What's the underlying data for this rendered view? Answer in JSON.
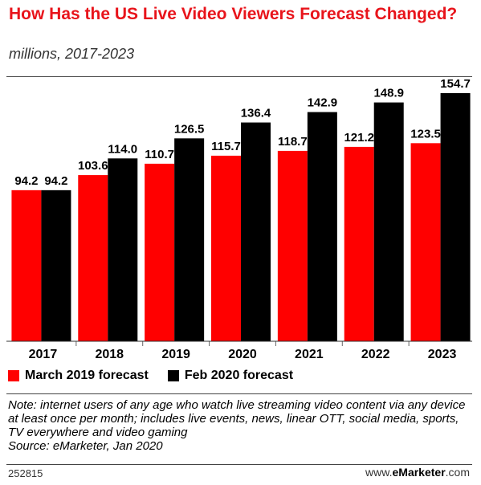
{
  "header": {
    "title": "How Has the US Live Video Viewers Forecast Changed?",
    "subtitle": "millions, 2017-2023"
  },
  "chart_data": {
    "type": "bar",
    "categories": [
      "2017",
      "2018",
      "2019",
      "2020",
      "2021",
      "2022",
      "2023"
    ],
    "series": [
      {
        "name": "March 2019 forecast",
        "color": "#ff0000",
        "values": [
          94.2,
          103.6,
          110.7,
          115.7,
          118.7,
          121.2,
          123.5
        ]
      },
      {
        "name": "Feb 2020 forecast",
        "color": "#000000",
        "values": [
          94.2,
          114.0,
          126.5,
          136.4,
          142.9,
          148.9,
          154.7
        ]
      }
    ],
    "ylim": [
      0,
      154.7
    ],
    "legend": "bottom-left",
    "grid": false
  },
  "footer": {
    "note": "Note: internet users of any age who watch live streaming video content via any device at least once per month; includes live events, news, linear OTT, social media, sports, TV everywhere and video gaming",
    "source": "Source: eMarketer, Jan 2020",
    "chart_id": "252815",
    "brand_prefix": "www.",
    "brand_name": "eMarketer",
    "brand_suffix": ".com"
  }
}
